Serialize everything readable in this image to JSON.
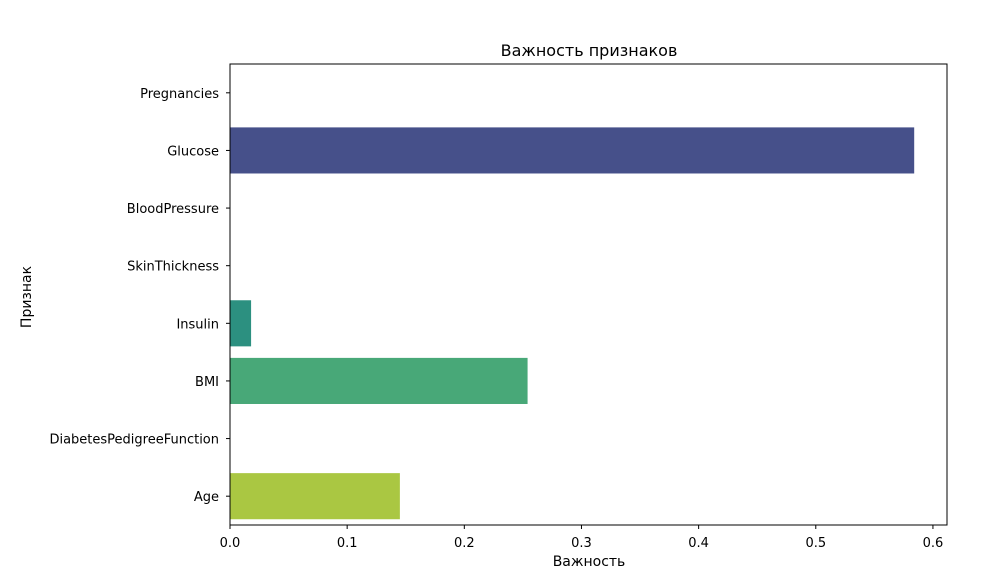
{
  "chart_data": {
    "type": "bar",
    "orientation": "horizontal",
    "title": "Важность признаков",
    "xlabel": "Важность",
    "ylabel": "Признак",
    "categories": [
      "Pregnancies",
      "Glucose",
      "BloodPressure",
      "SkinThickness",
      "Insulin",
      "BMI",
      "DiabetesPedigreeFunction",
      "Age"
    ],
    "values": [
      0.0,
      0.584,
      0.0,
      0.0,
      0.018,
      0.254,
      0.0,
      0.145
    ],
    "colors": [
      "#482878",
      "#46508a",
      "#39568c",
      "#2d708e",
      "#2c9080",
      "#48a878",
      "#7ad151",
      "#aac742"
    ],
    "xlim": [
      0,
      0.612
    ],
    "xticks": [
      0.0,
      0.1,
      0.2,
      0.3,
      0.4,
      0.5,
      0.6
    ],
    "xtick_labels": [
      "0.0",
      "0.1",
      "0.2",
      "0.3",
      "0.4",
      "0.5",
      "0.6"
    ],
    "grid": false
  }
}
